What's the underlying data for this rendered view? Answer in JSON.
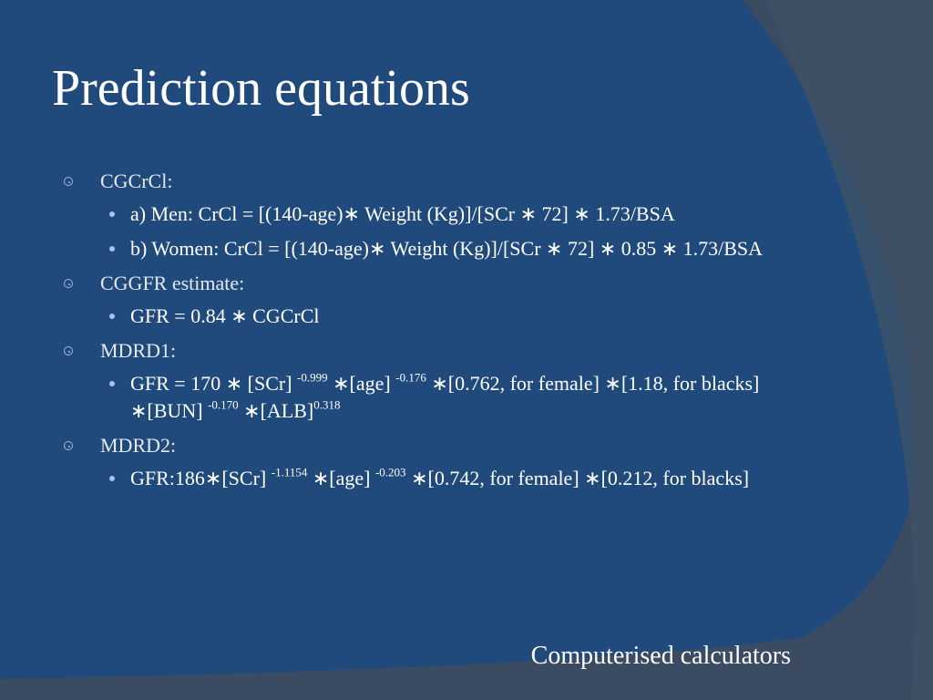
{
  "title": "Prediction equations",
  "items": [
    {
      "label": "CGCrCl:",
      "subitems": [
        [
          {
            "text": "a) Men: CrCl = [(140-age)∗ Weight (Kg)]/[SCr ∗ 72] ∗ 1.73/BSA"
          }
        ],
        [
          {
            "text": "b) Women: CrCl = [(140-age)∗ Weight (Kg)]/[SCr ∗ 72] ∗ 0.85 ∗ 1.73/BSA"
          }
        ]
      ]
    },
    {
      "label": "CGGFR estimate:",
      "subitems": [
        [
          {
            "text": "GFR = 0.84 ∗ CGCrCl"
          }
        ]
      ]
    },
    {
      "label": "MDRD1:",
      "subitems": [
        [
          {
            "text": "GFR = 170 ∗ [SCr] "
          },
          {
            "superscript": "-0.999"
          },
          {
            "text": " ∗[age] "
          },
          {
            "superscript": "-0.176"
          },
          {
            "text": " ∗[0.762, for female] ∗[1.18, for blacks] ∗[BUN] "
          },
          {
            "superscript": "-0.170"
          },
          {
            "text": " ∗[ALB]"
          },
          {
            "superscript": "0.318"
          }
        ]
      ]
    },
    {
      "label": "MDRD2:",
      "subitems": [
        [
          {
            "text": "GFR:186∗[SCr] "
          },
          {
            "superscript": "-1.1154"
          },
          {
            "text": " ∗[age] "
          },
          {
            "superscript": "-0.203"
          },
          {
            "text": " ∗[0.742, for female] ∗[0.212, for blacks]"
          }
        ]
      ]
    }
  ],
  "footer": "Computerised calculators"
}
